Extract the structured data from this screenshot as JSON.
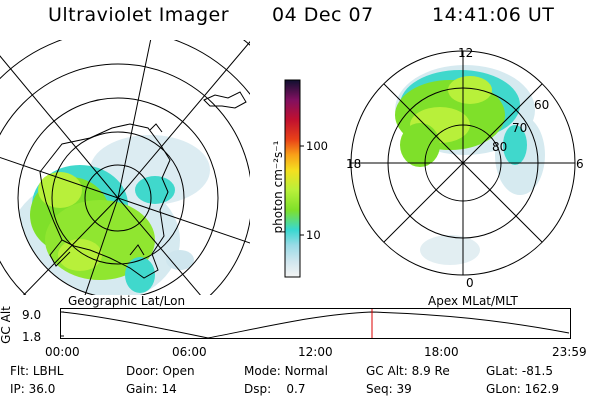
{
  "header": {
    "instrument": "Ultraviolet Imager",
    "date": "04 Dec 07",
    "time": "14:41:06 UT"
  },
  "left_panel": {
    "caption": "Geographic Lat/Lon"
  },
  "right_panel": {
    "caption": "Apex MLat/MLT",
    "mlt_labels": {
      "top": "12",
      "left": "18",
      "right": "6",
      "bottom": "0"
    },
    "mlat_labels": [
      "60",
      "70",
      "80"
    ]
  },
  "colorbar": {
    "unit_label": "photon cm⁻²s⁻¹",
    "ticks": [
      "100",
      "10"
    ]
  },
  "altitude_plot": {
    "ylabel": "GC Alt",
    "y_ticks": [
      "9.0",
      "1.8"
    ],
    "x_ticks": [
      "00:00",
      "06:00",
      "12:00",
      "18:00",
      "23:59"
    ],
    "marker_color": "#dd0000"
  },
  "status": {
    "row1": [
      {
        "key": "Flt:",
        "value": "LBHL"
      },
      {
        "key": "Door:",
        "value": "Open"
      },
      {
        "key": "Mode:",
        "value": "Normal"
      },
      {
        "key": "GC Alt:",
        "value": "8.9 Re"
      },
      {
        "key": "GLat:",
        "value": "-81.5"
      }
    ],
    "row2": [
      {
        "key": "IP:",
        "value": "36.0"
      },
      {
        "key": "Gain:",
        "value": "14"
      },
      {
        "key": "Dsp:",
        "value": "0.7"
      },
      {
        "key": "Seq:",
        "value": "39"
      },
      {
        "key": "GLon:",
        "value": "162.9"
      }
    ]
  },
  "colors": {
    "aurora_green": "#7fe02a",
    "aurora_yellowgreen": "#b8f03a",
    "aurora_cyan": "#38d8d0",
    "aurora_paleblue": "#cfe6ee"
  }
}
